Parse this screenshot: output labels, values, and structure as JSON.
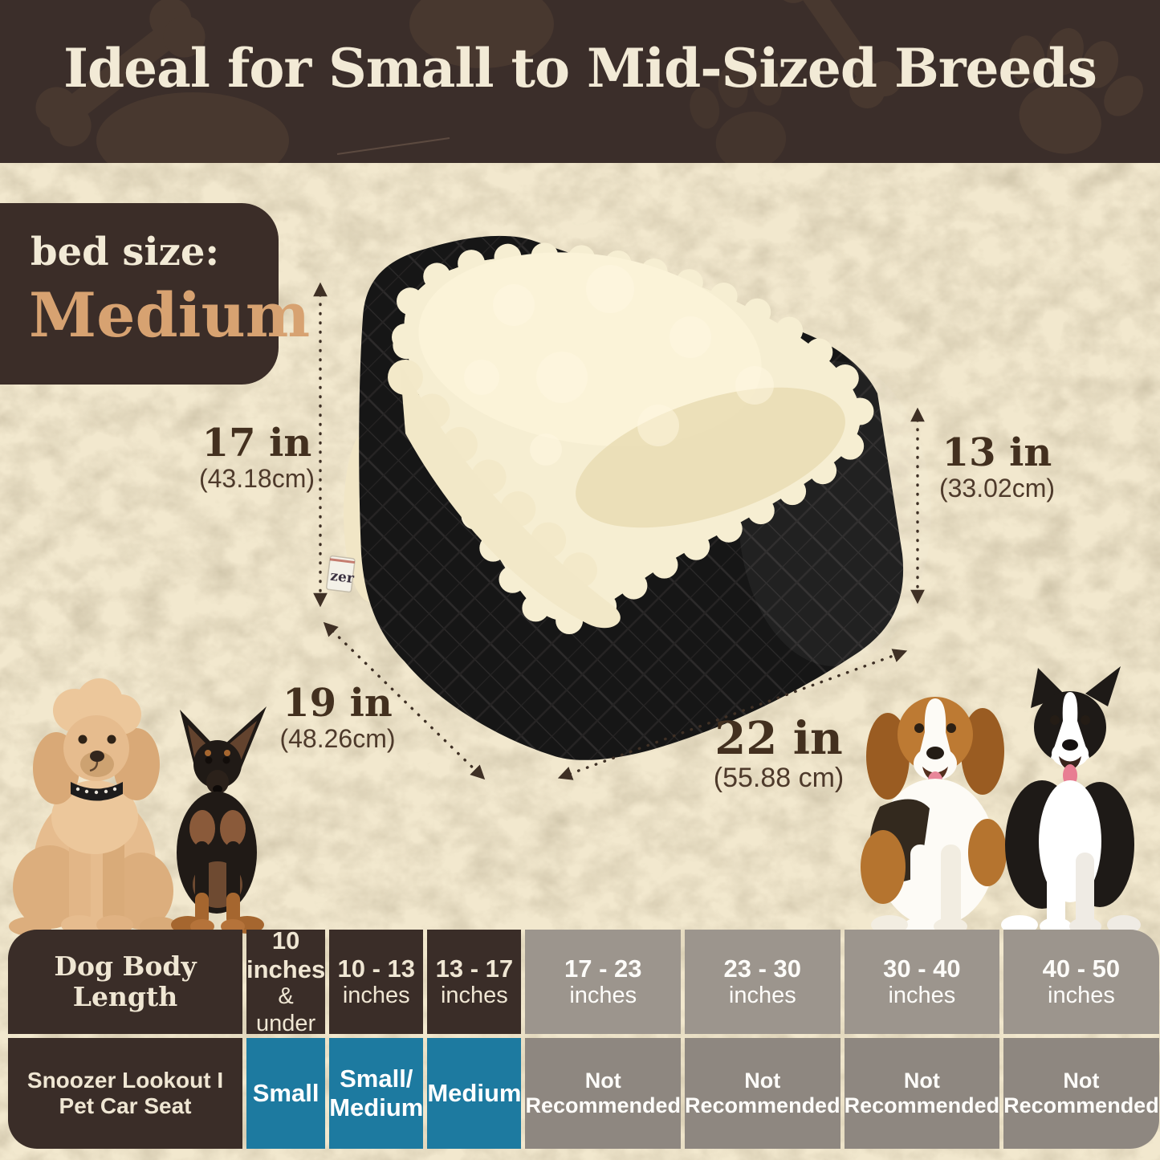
{
  "header": {
    "title": "Ideal for Small to Mid-Sized Breeds"
  },
  "badge": {
    "label": "bed size:",
    "value": "Medium"
  },
  "product": {
    "tag_text": "zer"
  },
  "dimensions": {
    "back_height": {
      "value": "17 in",
      "metric": "(43.18cm)"
    },
    "front_height": {
      "value": "13 in",
      "metric": "(33.02cm)"
    },
    "depth": {
      "value": "19 in",
      "metric": "(48.26cm)"
    },
    "width": {
      "value": "22 in",
      "metric": "(55.88 cm)"
    }
  },
  "dogs": {
    "left": [
      "poodle",
      "miniature-pinscher"
    ],
    "right": [
      "beagle",
      "border-collie"
    ]
  },
  "table": {
    "row_header_label": {
      "line1": "Dog Body",
      "line2": "Length"
    },
    "row_product_label": {
      "line1": "Snoozer Lookout I",
      "line2": "Pet Car Seat"
    },
    "columns": [
      {
        "line1": "10 inches",
        "line2": "& under",
        "fit_line1": "Small",
        "fit_line2": "",
        "recommended": true
      },
      {
        "line1": "10 - 13",
        "line2": "inches",
        "fit_line1": "Small/",
        "fit_line2": "Medium",
        "recommended": true
      },
      {
        "line1": "13 - 17",
        "line2": "inches",
        "fit_line1": "Medium",
        "fit_line2": "",
        "recommended": true
      },
      {
        "line1": "17 - 23",
        "line2": "inches",
        "fit_line1": "Not",
        "fit_line2": "Recommended",
        "recommended": false
      },
      {
        "line1": "23 - 30",
        "line2": "inches",
        "fit_line1": "Not",
        "fit_line2": "Recommended",
        "recommended": false
      },
      {
        "line1": "30 - 40",
        "line2": "inches",
        "fit_line1": "Not",
        "fit_line2": "Recommended",
        "recommended": false
      },
      {
        "line1": "40 - 50",
        "line2": "inches",
        "fit_line1": "Not",
        "fit_line2": "Recommended",
        "recommended": false
      }
    ]
  },
  "colors": {
    "header_bg": "#3b2e2a",
    "header_deco": "#48382f",
    "background_cream": "#f2e8ce",
    "text_cream": "#f2ead6",
    "accent_tan": "#d7a271",
    "dimension_text": "#43301f",
    "table_brown": "#3a2d28",
    "table_teal": "#1d7aa0",
    "table_gray_header": "#9c958d",
    "table_gray_cell": "#8e8780"
  }
}
